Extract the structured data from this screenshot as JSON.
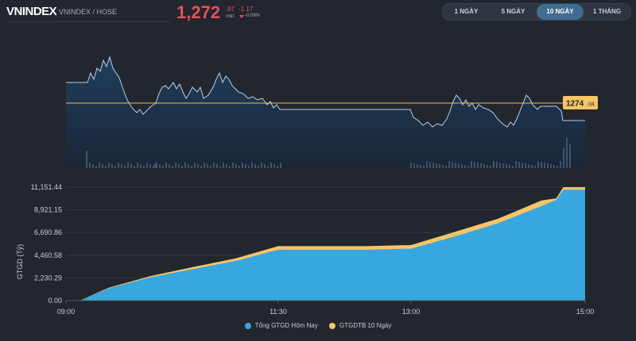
{
  "header": {
    "symbol": "VNINDEX",
    "exchange": "VNINDEX / HOSE",
    "price_int": "1,272",
    "price_dec": ".87",
    "currency": "VND",
    "change": "-1.17",
    "change_pct": "-0.09%"
  },
  "range_buttons": [
    {
      "label": "1 NGÀY",
      "active": false
    },
    {
      "label": "5 NGÀY",
      "active": false
    },
    {
      "label": "10 NGÀY",
      "active": true
    },
    {
      "label": "1 THÁNG",
      "active": false
    }
  ],
  "price_chart": {
    "type": "line",
    "ref_label_int": "1274",
    "ref_label_dec": ".04",
    "ref_color": "#f0c040",
    "line_color": "#b8d0e8"
  },
  "chart_data": {
    "type": "area",
    "ylabel": "GTGD (Tỷ)",
    "yticks": [
      "0.00",
      "2,230.29",
      "4,460.58",
      "6,690.86",
      "8,921.15",
      "11,151.44"
    ],
    "ylim": [
      0,
      11151.44
    ],
    "xticks": [
      "09:00",
      "11:30",
      "13:00",
      "15:00"
    ],
    "series": [
      {
        "name": "Tổng GTGD Hôm Nay",
        "color": "#38a7e0",
        "x": [
          "09:00",
          "09:10",
          "09:30",
          "10:00",
          "10:30",
          "11:00",
          "11:30",
          "12:00",
          "12:30",
          "13:00",
          "13:30",
          "14:00",
          "14:30",
          "14:40",
          "14:45",
          "15:00"
        ],
        "values": [
          0,
          0,
          1200,
          2300,
          3100,
          3900,
          5000,
          5000,
          5000,
          5100,
          6300,
          7600,
          9300,
          9900,
          10900,
          10900
        ]
      },
      {
        "name": "GTGDTB 10 Ngày",
        "color": "#f6c566",
        "x": [
          "09:00",
          "09:10",
          "09:30",
          "10:00",
          "10:30",
          "11:00",
          "11:30",
          "12:00",
          "12:30",
          "13:00",
          "13:30",
          "14:00",
          "14:30",
          "14:40",
          "14:45",
          "15:00"
        ],
        "values": [
          0,
          0,
          1260,
          2420,
          3300,
          4150,
          5350,
          5350,
          5350,
          5460,
          6750,
          8050,
          9850,
          10050,
          11151,
          11151
        ]
      }
    ]
  }
}
